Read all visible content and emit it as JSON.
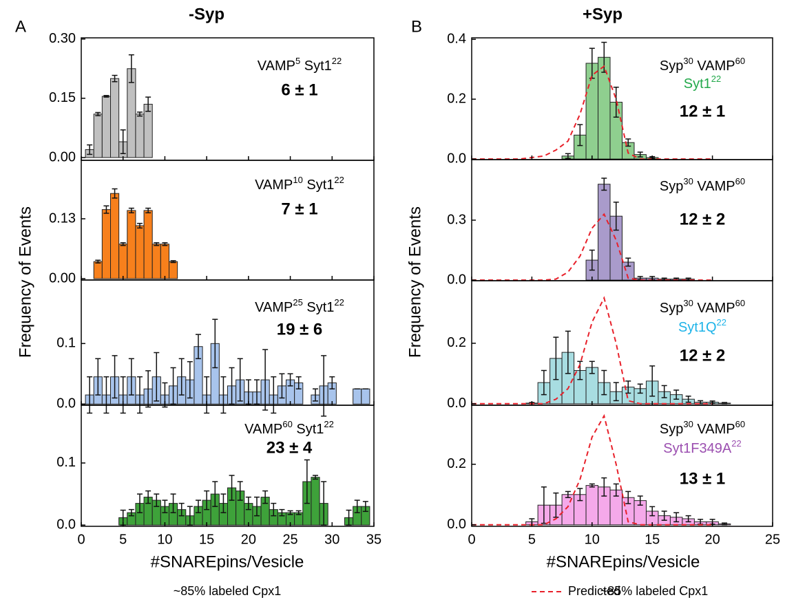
{
  "panels": [
    {
      "letter": "A",
      "title": "-Syp",
      "ylabel": "Frequency of Events",
      "xlabel": "#SNAREpins/Vesicle",
      "note": "~85% labeled Cpx1"
    },
    {
      "letter": "B",
      "title": "+Syp",
      "ylabel": "Frequency of Events",
      "xlabel": "#SNAREpins/Vesicle",
      "note": "~85% labeled Cpx1"
    }
  ],
  "chart_data": [
    {
      "type": "bar",
      "x": [
        1,
        2,
        3,
        4,
        5,
        6,
        7,
        8
      ],
      "values": [
        0.02,
        0.11,
        0.155,
        0.2,
        0.04,
        0.225,
        0.11,
        0.135
      ],
      "errors": [
        0.012,
        0.004,
        0.002,
        0.008,
        0.03,
        0.035,
        0.005,
        0.018
      ],
      "color": "#c0c0c0",
      "xlim": [
        0,
        35
      ],
      "ylim": [
        -0.007,
        0.303
      ],
      "yticks": [
        {
          "value": 0,
          "label": "0.00"
        },
        0.15,
        {
          "value": 0.3,
          "label": "0.30"
        }
      ],
      "xticks": [
        0,
        5,
        10,
        15,
        20,
        25,
        30,
        35
      ],
      "xtick_labels": false,
      "annotation": [
        [
          {
            "text": "VAMP"
          },
          {
            "text": "5",
            "sup": true
          },
          {
            "text": " Syt1"
          },
          {
            "text": "22",
            "sup": true
          }
        ]
      ],
      "estimate": "6 ± 1"
    },
    {
      "type": "bar",
      "x": [
        2,
        3,
        4,
        5,
        6,
        7,
        8,
        9,
        10,
        11
      ],
      "values": [
        0.037,
        0.15,
        0.185,
        0.075,
        0.148,
        0.115,
        0.148,
        0.075,
        0.075,
        0.037
      ],
      "errors": [
        0.003,
        0.008,
        0.01,
        0.003,
        0.005,
        0.005,
        0.005,
        0.003,
        0.003,
        0.002
      ],
      "color": "#f7801c",
      "xlim": [
        0,
        35
      ],
      "ylim": [
        -0.003,
        0.257
      ],
      "yticks": [
        {
          "value": 0,
          "label": "0.00"
        },
        0.13
      ],
      "xticks": [
        0,
        5,
        10,
        15,
        20,
        25,
        30,
        35
      ],
      "xtick_labels": false,
      "annotation": [
        [
          {
            "text": "VAMP"
          },
          {
            "text": "10",
            "sup": true
          },
          {
            "text": " Syt1"
          },
          {
            "text": "22",
            "sup": true
          }
        ]
      ],
      "estimate": "7 ± 1"
    },
    {
      "type": "bar",
      "x": [
        1,
        2,
        3,
        4,
        5,
        6,
        7,
        8,
        9,
        10,
        11,
        12,
        13,
        14,
        15,
        16,
        17,
        18,
        19,
        20,
        21,
        22,
        23,
        24,
        25,
        26,
        28,
        29,
        30,
        33,
        34
      ],
      "values": [
        0.015,
        0.045,
        0.015,
        0.045,
        0.015,
        0.045,
        0.015,
        0.025,
        0.045,
        0.015,
        0.03,
        0.045,
        0.04,
        0.095,
        0.015,
        0.1,
        0.015,
        0.03,
        0.04,
        0.02,
        0.02,
        0.04,
        0.015,
        0.03,
        0.04,
        0.035,
        0.015,
        0.03,
        0.035,
        0.025,
        0.025
      ],
      "errors": [
        0.03,
        0.03,
        0.03,
        0.035,
        0.03,
        0.03,
        0.03,
        0.03,
        0.04,
        0.02,
        0.03,
        0.03,
        0.03,
        0.02,
        0.03,
        0.04,
        0.03,
        0.03,
        0.035,
        0.02,
        0.02,
        0.05,
        0.03,
        0.02,
        0.01,
        0.01,
        0.01,
        0.05,
        0.01,
        0.0,
        0.0
      ],
      "color": "#a8c4ec",
      "xlim": [
        0,
        35
      ],
      "ylim": [
        -0.002,
        0.205
      ],
      "yticks": [
        {
          "value": 0,
          "label": "0.0"
        },
        0.1
      ],
      "xticks": [
        0,
        5,
        10,
        15,
        20,
        25,
        30,
        35
      ],
      "xtick_labels": false,
      "annotation": [
        [
          {
            "text": "VAMP"
          },
          {
            "text": "25",
            "sup": true
          },
          {
            "text": " Syt1"
          },
          {
            "text": "22",
            "sup": true
          }
        ]
      ],
      "estimate": "19 ± 6"
    },
    {
      "type": "bar",
      "x": [
        5,
        6,
        7,
        8,
        9,
        10,
        11,
        12,
        13,
        14,
        15,
        16,
        17,
        18,
        19,
        20,
        21,
        22,
        23,
        24,
        25,
        26,
        27,
        28,
        29,
        32,
        33,
        34
      ],
      "values": [
        0.012,
        0.02,
        0.035,
        0.045,
        0.04,
        0.03,
        0.035,
        0.025,
        0.015,
        0.03,
        0.04,
        0.05,
        0.035,
        0.06,
        0.055,
        0.035,
        0.03,
        0.045,
        0.025,
        0.02,
        0.02,
        0.02,
        0.07,
        0.077,
        0.035,
        0.012,
        0.03,
        0.03
      ],
      "errors": [
        0.012,
        0.005,
        0.015,
        0.01,
        0.01,
        0.01,
        0.015,
        0.01,
        0.015,
        0.01,
        0.015,
        0.02,
        0.015,
        0.02,
        0.015,
        0.01,
        0.015,
        0.01,
        0.01,
        0.005,
        0.003,
        0.003,
        0.035,
        0.003,
        0.035,
        0.012,
        0.01,
        0.008
      ],
      "color": "#3ea23a",
      "xlim": [
        0,
        35
      ],
      "ylim": [
        -0.002,
        0.193
      ],
      "yticks": [
        {
          "value": 0,
          "label": "0.0"
        },
        0.1
      ],
      "xticks": [
        0,
        5,
        10,
        15,
        20,
        25,
        30,
        35
      ],
      "xtick_labels": true,
      "annotation": [
        [
          {
            "text": "VAMP"
          },
          {
            "text": "60",
            "sup": true
          },
          {
            "text": " Syt1"
          },
          {
            "text": "22",
            "sup": true
          }
        ]
      ],
      "estimate": "23 ± 4"
    },
    {
      "type": "bar",
      "x": [
        8,
        9,
        10,
        11,
        12,
        13,
        14,
        15
      ],
      "values": [
        0.01,
        0.08,
        0.32,
        0.34,
        0.19,
        0.055,
        0.015,
        0.005
      ],
      "errors": [
        0.008,
        0.035,
        0.05,
        0.05,
        0.05,
        0.012,
        0.008,
        0.003
      ],
      "color": "#8fcf8f",
      "xlim": [
        0,
        25
      ],
      "ylim": [
        -0.002,
        0.405
      ],
      "yticks": [
        {
          "value": 0,
          "label": "0.0"
        },
        0.2,
        0.4
      ],
      "xticks": [
        0,
        5,
        10,
        15,
        20,
        25
      ],
      "xtick_labels": false,
      "curve": {
        "x": [
          0,
          1,
          2,
          3,
          4,
          5,
          6,
          7,
          8,
          9,
          10,
          11,
          12,
          13,
          14,
          15,
          16,
          17,
          18,
          19,
          20
        ],
        "values": [
          0,
          0,
          0,
          0,
          0,
          0.005,
          0.01,
          0.03,
          0.06,
          0.15,
          0.28,
          0.31,
          0.2,
          0.02,
          0,
          0,
          0,
          0,
          0,
          0,
          0
        ],
        "color": "#e8202a"
      },
      "annotation": [
        [
          {
            "text": "Syp"
          },
          {
            "text": "30",
            "sup": true
          },
          {
            "text": " VAMP"
          },
          {
            "text": "60",
            "sup": true
          }
        ],
        [
          {
            "text": "Syt1",
            "color": "#22a84a"
          },
          {
            "text": "22",
            "sup": true,
            "color": "#22a84a"
          }
        ]
      ],
      "estimate": "12 ± 1"
    },
    {
      "type": "bar",
      "x": [
        10,
        11,
        12,
        13,
        14,
        15,
        16,
        17,
        18
      ],
      "values": [
        0.1,
        0.48,
        0.32,
        0.09,
        0.01,
        0.01,
        0.005,
        0.005,
        0.005
      ],
      "errors": [
        0.05,
        0.03,
        0.07,
        0.02,
        0.008,
        0.008,
        0.005,
        0.005,
        0.005
      ],
      "color": "#a99bcb",
      "xlim": [
        0,
        25
      ],
      "ylim": [
        -0.003,
        0.603
      ],
      "yticks": [
        {
          "value": 0,
          "label": "0.0"
        },
        0.3
      ],
      "xticks": [
        0,
        5,
        10,
        15,
        20,
        25
      ],
      "xtick_labels": false,
      "curve": {
        "x": [
          0,
          1,
          2,
          3,
          4,
          5,
          6,
          7,
          8,
          9,
          10,
          11,
          12,
          13,
          14,
          15,
          16,
          17,
          18,
          19,
          20
        ],
        "values": [
          0,
          0,
          0,
          0,
          0,
          0,
          0,
          0.005,
          0.04,
          0.12,
          0.26,
          0.33,
          0.2,
          0.01,
          0,
          0,
          0,
          0,
          0,
          0,
          0
        ],
        "color": "#e8202a"
      },
      "annotation": [
        [
          {
            "text": "Syp"
          },
          {
            "text": "30",
            "sup": true
          },
          {
            "text": " VAMP"
          },
          {
            "text": "60",
            "sup": true
          }
        ]
      ],
      "estimate": "12 ± 2"
    },
    {
      "type": "bar",
      "x": [
        5,
        6,
        7,
        8,
        9,
        10,
        11,
        12,
        13,
        14,
        15,
        16,
        17,
        18,
        19,
        20,
        21
      ],
      "values": [
        0.002,
        0.07,
        0.15,
        0.17,
        0.11,
        0.12,
        0.07,
        0.04,
        0.055,
        0.05,
        0.075,
        0.04,
        0.03,
        0.015,
        0.005,
        0.005,
        0.002
      ],
      "errors": [
        0.002,
        0.04,
        0.07,
        0.07,
        0.03,
        0.02,
        0.04,
        0.03,
        0.02,
        0.015,
        0.05,
        0.02,
        0.015,
        0.01,
        0.005,
        0.004,
        0.002
      ],
      "color": "#a8dde1",
      "xlim": [
        0,
        25
      ],
      "ylim": [
        -0.005,
        0.407
      ],
      "yticks": [
        {
          "value": 0,
          "label": "0.0"
        },
        0.2
      ],
      "xticks": [
        0,
        5,
        10,
        15,
        20,
        25
      ],
      "xtick_labels": false,
      "curve": {
        "x": [
          0,
          1,
          2,
          3,
          4,
          5,
          6,
          7,
          8,
          9,
          10,
          11,
          12,
          13,
          14,
          15,
          16,
          17,
          18,
          19,
          20
        ],
        "values": [
          0,
          0,
          0,
          0,
          0,
          0,
          0,
          0.015,
          0.05,
          0.13,
          0.27,
          0.35,
          0.2,
          0.01,
          0,
          0,
          0,
          0,
          0,
          0,
          0
        ],
        "color": "#e8202a"
      },
      "annotation": [
        [
          {
            "text": "Syp"
          },
          {
            "text": "30",
            "sup": true
          },
          {
            "text": " VAMP"
          },
          {
            "text": "60",
            "sup": true
          }
        ],
        [
          {
            "text": "Syt1Q",
            "color": "#1db3e8"
          },
          {
            "text": "22",
            "sup": true,
            "color": "#1db3e8"
          }
        ]
      ],
      "estimate": "12 ± 2"
    },
    {
      "type": "bar",
      "x": [
        5,
        6,
        7,
        8,
        9,
        10,
        11,
        12,
        13,
        14,
        15,
        16,
        17,
        18,
        19,
        20,
        21
      ],
      "values": [
        0.01,
        0.065,
        0.065,
        0.1,
        0.1,
        0.13,
        0.125,
        0.115,
        0.09,
        0.08,
        0.045,
        0.03,
        0.025,
        0.02,
        0.01,
        0.01,
        0.003
      ],
      "errors": [
        0.01,
        0.06,
        0.04,
        0.01,
        0.02,
        0.005,
        0.03,
        0.02,
        0.02,
        0.015,
        0.015,
        0.015,
        0.015,
        0.01,
        0.008,
        0.008,
        0.003
      ],
      "color": "#f5a9ea",
      "xlim": [
        0,
        25
      ],
      "ylim": [
        -0.005,
        0.395
      ],
      "yticks": [
        {
          "value": 0,
          "label": "0.0"
        },
        0.2
      ],
      "xticks": [
        0,
        5,
        10,
        15,
        20,
        25
      ],
      "xtick_labels": true,
      "curve": {
        "name": "Predicted",
        "x": [
          0,
          1,
          2,
          3,
          4,
          5,
          6,
          7,
          8,
          9,
          10,
          11,
          12,
          13,
          14,
          15,
          16,
          17,
          18,
          19,
          20
        ],
        "values": [
          0,
          0,
          0,
          0,
          0,
          0,
          0,
          0.02,
          0.06,
          0.15,
          0.29,
          0.36,
          0.2,
          0.01,
          0,
          0,
          0,
          0,
          0,
          0,
          0
        ],
        "color": "#e8202a"
      },
      "annotation": [
        [
          {
            "text": "Syp"
          },
          {
            "text": "30",
            "sup": true
          },
          {
            "text": " VAMP"
          },
          {
            "text": "60",
            "sup": true
          }
        ],
        [
          {
            "text": "Syt1F349A",
            "color": "#9b4fb0"
          },
          {
            "text": "22",
            "sup": true,
            "color": "#9b4fb0"
          }
        ]
      ],
      "estimate": "13 ± 1"
    }
  ]
}
